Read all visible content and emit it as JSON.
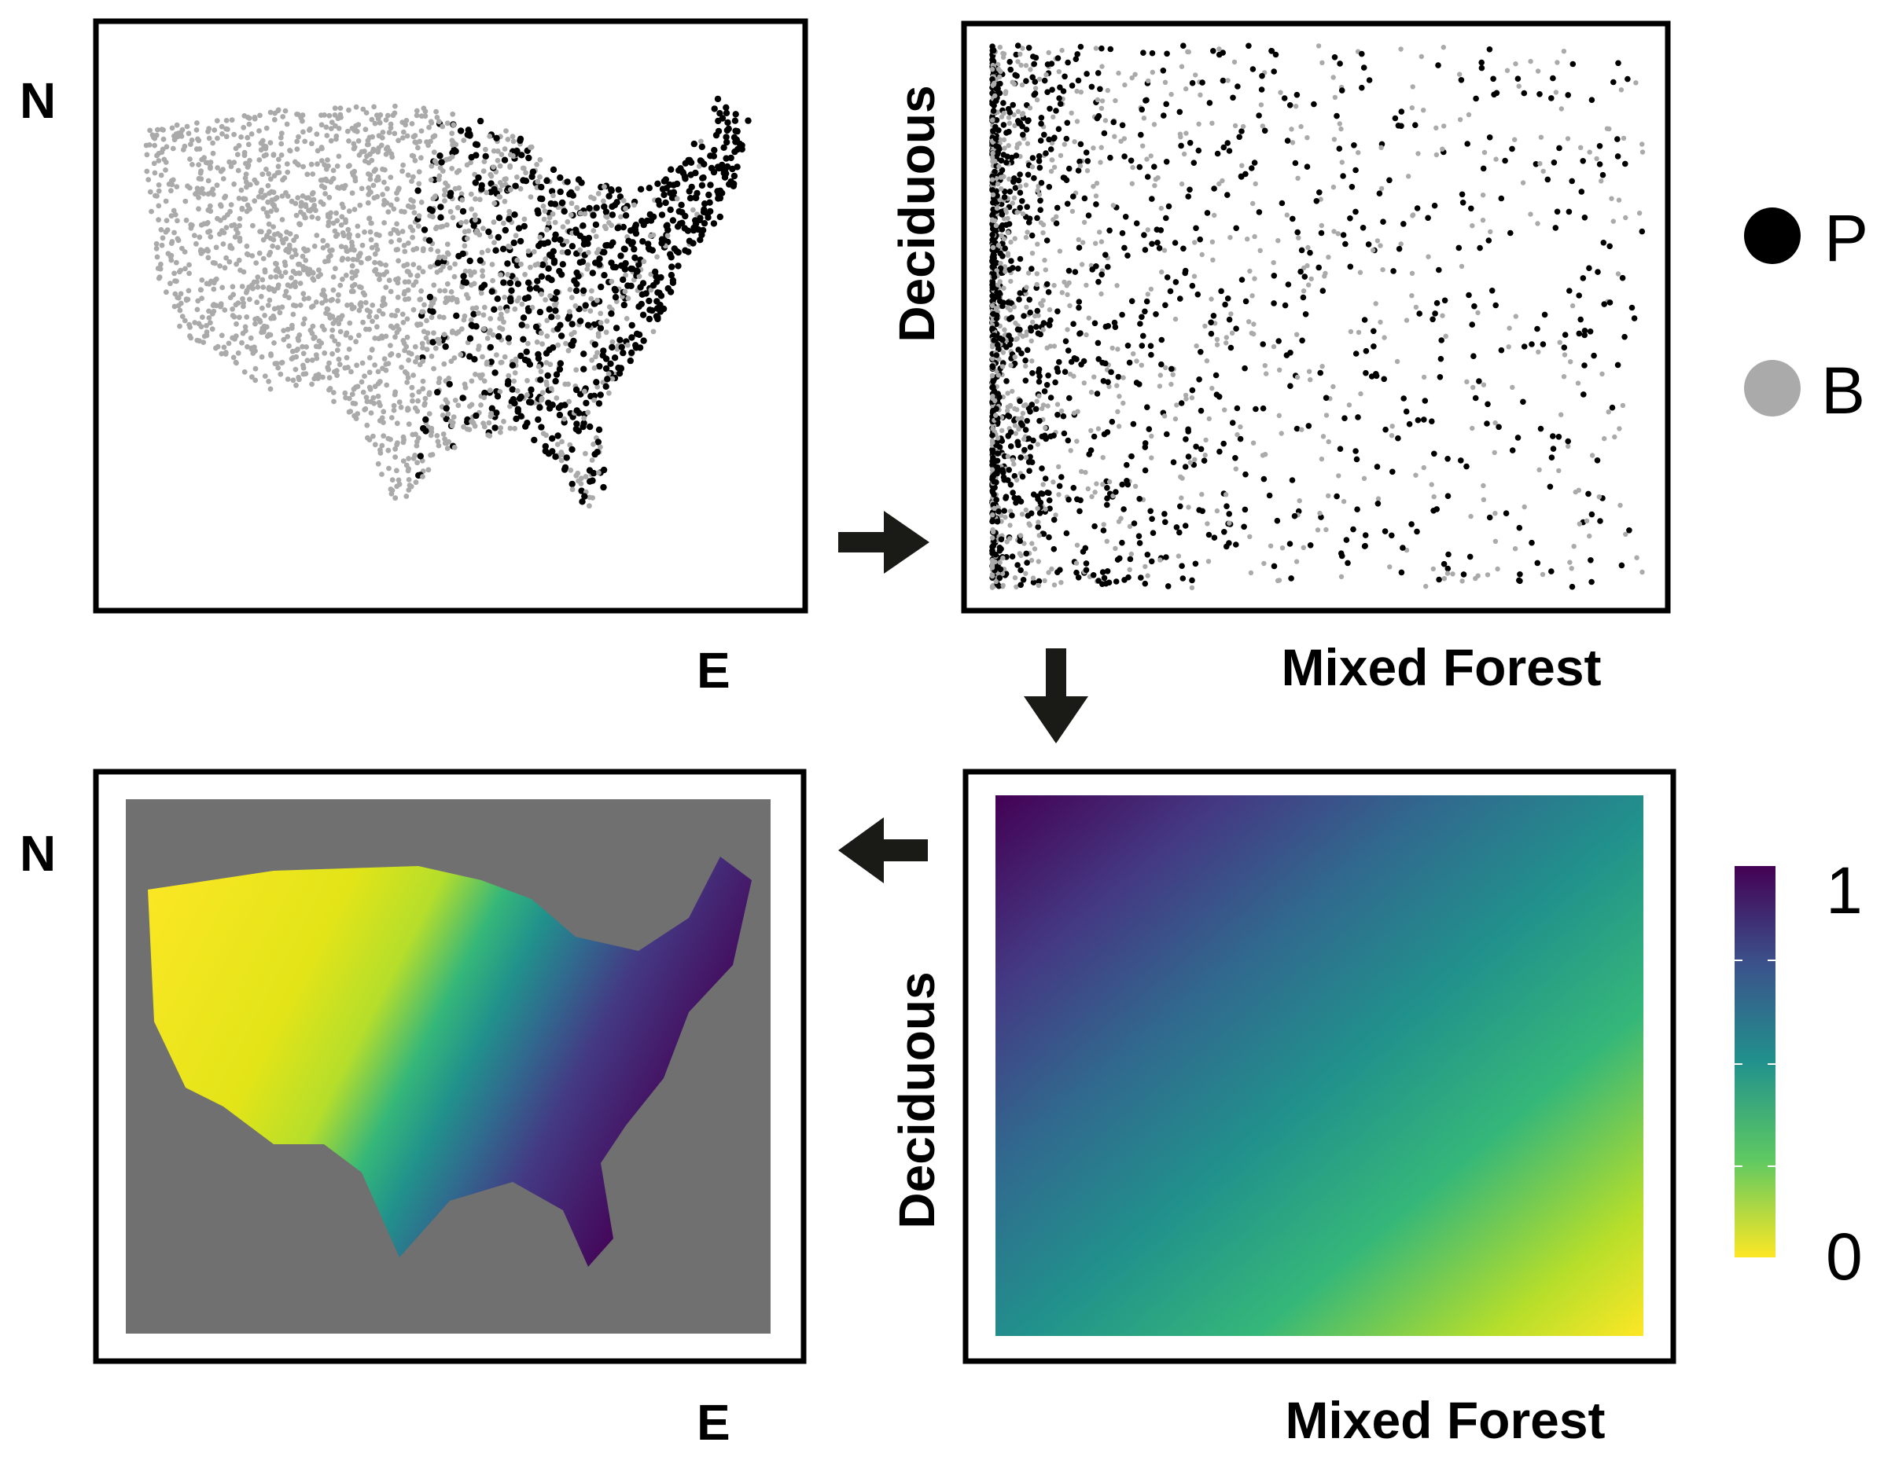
{
  "panels": {
    "occurrence_map": {
      "y_label": "N",
      "x_label": "E"
    },
    "env_scatter": {
      "y_label": "Deciduous",
      "x_label": "Mixed Forest"
    },
    "response_surface": {
      "y_label": "Deciduous",
      "x_label": "Mixed Forest"
    },
    "prediction_map": {
      "y_label": "N",
      "x_label": "E"
    }
  },
  "legend": {
    "presence_label": "P",
    "background_label": "B",
    "presence_color": "#000000",
    "background_color": "#aaaaaa"
  },
  "colorbar": {
    "max_label": "1",
    "min_label": "0",
    "colormap": [
      "#fde725",
      "#5ec962",
      "#21918c",
      "#3b528b",
      "#440154"
    ]
  },
  "map_background_color": "#707070",
  "arrows": [
    "right",
    "down",
    "left"
  ]
}
